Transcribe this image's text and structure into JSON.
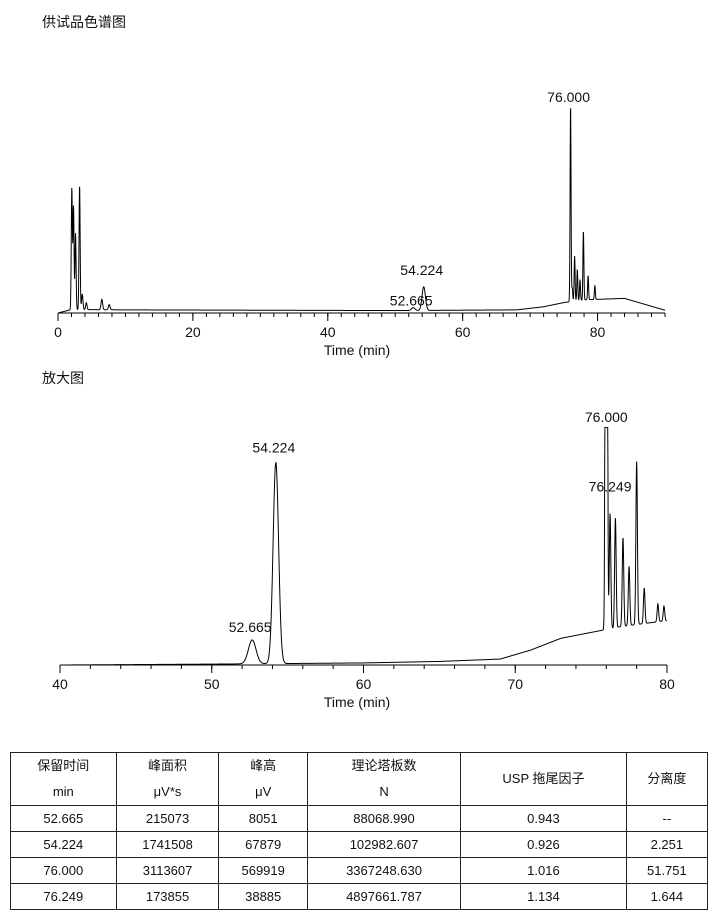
{
  "titles": {
    "main": "供试品色谱图",
    "zoom": "放大图"
  },
  "chart_data": [
    {
      "type": "line",
      "xlabel": "Time (min)",
      "ylabel": "",
      "xlim": [
        0,
        90
      ],
      "ylim": [
        0,
        590000
      ],
      "x_ticks": [
        0,
        20,
        40,
        60,
        80
      ],
      "line_color": "#000000",
      "baseline": [
        [
          0,
          0
        ],
        [
          2,
          10000
        ],
        [
          10,
          9000
        ],
        [
          30,
          8000
        ],
        [
          50,
          7000
        ],
        [
          68,
          9000
        ],
        [
          72,
          18000
        ],
        [
          75,
          30000
        ],
        [
          78,
          38000
        ],
        [
          84,
          42000
        ],
        [
          87,
          25000
        ],
        [
          90,
          8000
        ]
      ],
      "peaks": [
        {
          "x": 2.05,
          "y": 350000,
          "w": 0.08
        },
        {
          "x": 2.3,
          "y": 300000,
          "w": 0.08
        },
        {
          "x": 2.6,
          "y": 220000,
          "w": 0.08
        },
        {
          "x": 3.2,
          "y": 360000,
          "w": 0.08
        },
        {
          "x": 3.6,
          "y": 45000,
          "w": 0.1
        },
        {
          "x": 4.2,
          "y": 20000,
          "w": 0.1
        },
        {
          "x": 6.5,
          "y": 30000,
          "w": 0.12
        },
        {
          "x": 7.6,
          "y": 15000,
          "w": 0.12
        },
        {
          "x": 52.665,
          "y": 8051,
          "w": 0.25
        },
        {
          "x": 54.224,
          "y": 67879,
          "w": 0.25
        },
        {
          "x": 76.0,
          "y": 569919,
          "w": 0.07
        },
        {
          "x": 76.249,
          "y": 38885,
          "w": 0.07
        },
        {
          "x": 76.6,
          "y": 130000,
          "w": 0.07
        },
        {
          "x": 77.0,
          "y": 90000,
          "w": 0.07
        },
        {
          "x": 77.4,
          "y": 60000,
          "w": 0.07
        },
        {
          "x": 77.9,
          "y": 200000,
          "w": 0.07
        },
        {
          "x": 78.6,
          "y": 70000,
          "w": 0.07
        },
        {
          "x": 79.6,
          "y": 40000,
          "w": 0.07
        }
      ],
      "annotations": [
        {
          "x": 52.665,
          "text": "52.665"
        },
        {
          "x": 54.224,
          "text": "54.224"
        },
        {
          "x": 76.0,
          "text": "76.000"
        }
      ]
    },
    {
      "type": "line",
      "xlabel": "Time (min)",
      "ylabel": "",
      "xlim": [
        40,
        80
      ],
      "ylim": [
        0,
        80000
      ],
      "x_ticks": [
        40,
        50,
        60,
        70,
        80
      ],
      "line_color": "#000000",
      "baseline": [
        [
          40,
          0
        ],
        [
          50,
          300
        ],
        [
          60,
          700
        ],
        [
          65,
          1200
        ],
        [
          69,
          2000
        ],
        [
          71,
          5000
        ],
        [
          73,
          9000
        ],
        [
          75,
          11000
        ],
        [
          77,
          13000
        ],
        [
          80,
          15000
        ]
      ],
      "peaks": [
        {
          "x": 52.665,
          "y": 8051,
          "w": 0.25
        },
        {
          "x": 54.224,
          "y": 67879,
          "w": 0.18
        },
        {
          "x": 76.0,
          "y": 569919,
          "w": 0.05
        },
        {
          "x": 76.249,
          "y": 38885,
          "w": 0.05
        },
        {
          "x": 76.6,
          "y": 37000,
          "w": 0.05
        },
        {
          "x": 77.1,
          "y": 30000,
          "w": 0.05
        },
        {
          "x": 77.5,
          "y": 20000,
          "w": 0.05
        },
        {
          "x": 78.0,
          "y": 55000,
          "w": 0.05
        },
        {
          "x": 78.5,
          "y": 12000,
          "w": 0.05
        },
        {
          "x": 79.4,
          "y": 6000,
          "w": 0.05
        },
        {
          "x": 79.8,
          "y": 5000,
          "w": 0.05
        }
      ],
      "annotations": [
        {
          "x": 52.665,
          "text": "52.665"
        },
        {
          "x": 54.224,
          "text": "54.224"
        },
        {
          "x": 76.0,
          "text": "76.000"
        },
        {
          "x": 76.249,
          "text": "76.249"
        }
      ]
    }
  ],
  "table": {
    "headers": [
      {
        "line1": "保留时间",
        "line2": "min"
      },
      {
        "line1": "峰面积",
        "line2": "μV*s"
      },
      {
        "line1": "峰高",
        "line2": "μV"
      },
      {
        "line1": "理论塔板数",
        "line2": "N"
      },
      {
        "line1": "USP 拖尾因子",
        "line2": ""
      },
      {
        "line1": "分离度",
        "line2": ""
      }
    ],
    "rows": [
      [
        "52.665",
        "215073",
        "8051",
        "88068.990",
        "0.943",
        "--"
      ],
      [
        "54.224",
        "1741508",
        "67879",
        "102982.607",
        "0.926",
        "2.251"
      ],
      [
        "76.000",
        "3113607",
        "569919",
        "3367248.630",
        "1.016",
        "51.751"
      ],
      [
        "76.249",
        "173855",
        "38885",
        "4897661.787",
        "1.134",
        "1.644"
      ]
    ]
  }
}
